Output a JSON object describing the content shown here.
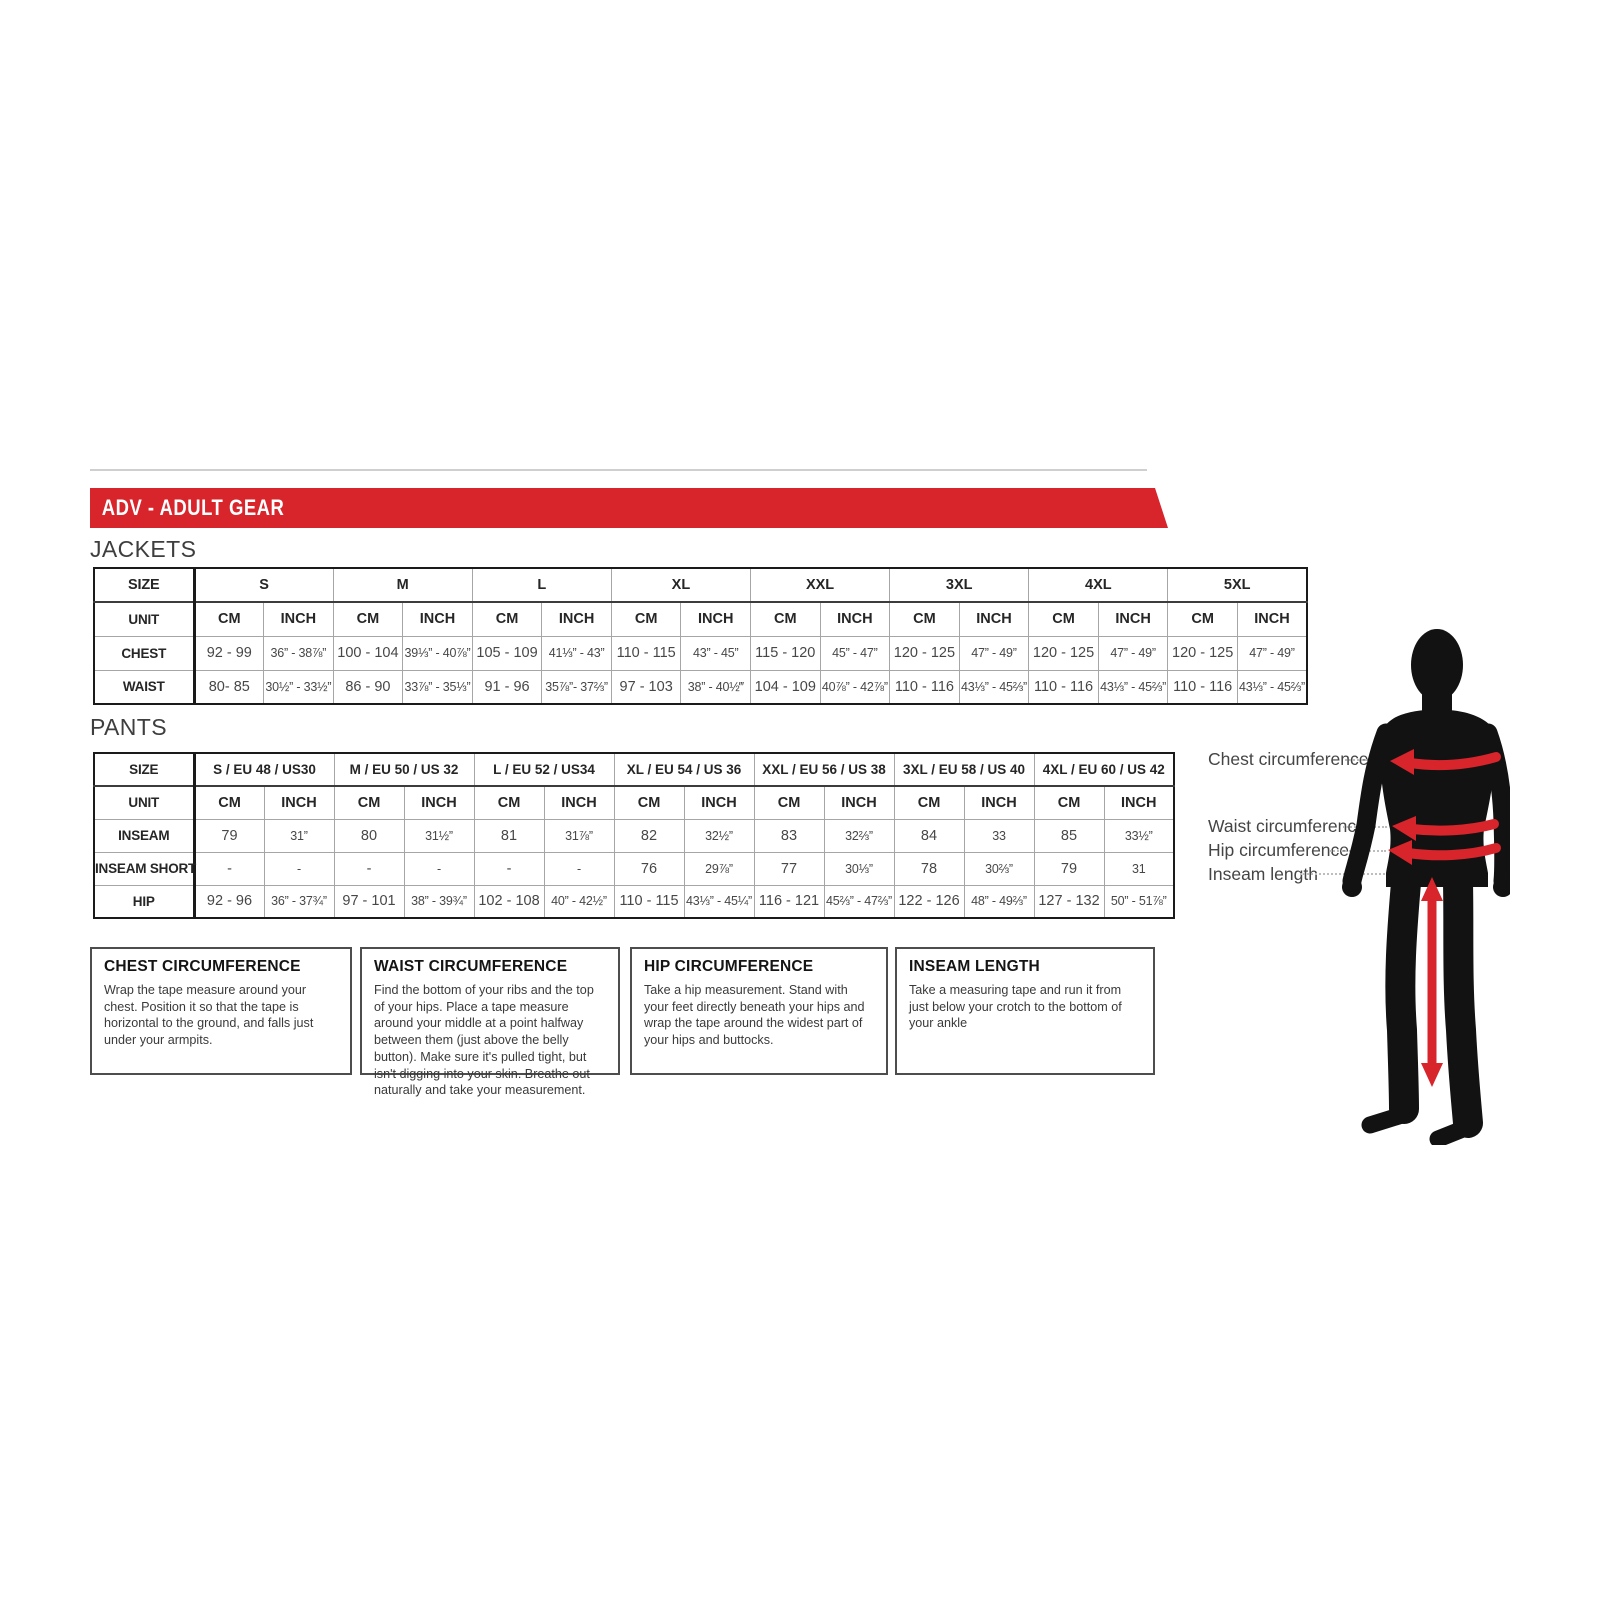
{
  "colors": {
    "accent": "#d8242b",
    "silhouette": "#121212"
  },
  "banner": {
    "title": "ADV - ADULT GEAR"
  },
  "jackets": {
    "section_label": "JACKETS",
    "size_header": "SIZE",
    "unit_header": "UNIT",
    "cm_label": "CM",
    "inch_label": "INCH",
    "sizes": [
      "S",
      "M",
      "L",
      "XL",
      "XXL",
      "3XL",
      "4XL",
      "5XL"
    ],
    "rows": [
      {
        "label": "CHEST",
        "cells": [
          [
            "92 - 99",
            "36” - 38⅞”"
          ],
          [
            "100 - 104",
            "39⅓” - 40⅞”"
          ],
          [
            "105 - 109",
            "41⅓” - 43”"
          ],
          [
            "110 - 115",
            "43” - 45”"
          ],
          [
            "115 - 120",
            "45” - 47”"
          ],
          [
            "120 - 125",
            "47” - 49”"
          ],
          [
            "120 - 125",
            "47” - 49”"
          ],
          [
            "120 - 125",
            "47” - 49”"
          ]
        ]
      },
      {
        "label": "WAIST",
        "cells": [
          [
            "80- 85",
            "30½” - 33½”"
          ],
          [
            "86 - 90",
            "33⅞” - 35⅓”"
          ],
          [
            "91 - 96",
            "35⅞”- 37⅔”"
          ],
          [
            "97 - 103",
            "38” - 40½‴"
          ],
          [
            "104 - 109",
            "40⅞” - 42⅞”"
          ],
          [
            "110 - 116",
            "43⅓” - 45⅔”"
          ],
          [
            "110 - 116",
            "43⅓” - 45⅔”"
          ],
          [
            "110 - 116",
            "43⅓” - 45⅔”"
          ]
        ]
      }
    ]
  },
  "pants": {
    "section_label": "PANTS",
    "size_header": "SIZE",
    "unit_header": "UNIT",
    "cm_label": "CM",
    "inch_label": "INCH",
    "sizes": [
      "S / EU 48 / US30",
      "M / EU 50 / US 32",
      "L / EU 52 / US34",
      "XL / EU 54 / US 36",
      "XXL / EU 56 / US 38",
      "3XL / EU 58 / US 40",
      "4XL / EU 60 / US 42"
    ],
    "rows": [
      {
        "label": "INSEAM",
        "cells": [
          [
            "79",
            "31”"
          ],
          [
            "80",
            "31½”"
          ],
          [
            "81",
            "31⅞”"
          ],
          [
            "82",
            "32½”"
          ],
          [
            "83",
            "32⅔”"
          ],
          [
            "84",
            "33"
          ],
          [
            "85",
            "33½”"
          ]
        ]
      },
      {
        "label": "INSEAM SHORT",
        "cells": [
          [
            "-",
            "-"
          ],
          [
            "-",
            "-"
          ],
          [
            "-",
            "-"
          ],
          [
            "76",
            "29⅞”"
          ],
          [
            "77",
            "30⅓”"
          ],
          [
            "78",
            "30⅔”"
          ],
          [
            "79",
            "31"
          ]
        ]
      },
      {
        "label": "HIP",
        "cells": [
          [
            "92 - 96",
            "36” - 37¾”"
          ],
          [
            "97 - 101",
            "38” - 39¾”"
          ],
          [
            "102 - 108",
            "40” - 42½”"
          ],
          [
            "110 - 115",
            "43⅓” - 45¼”"
          ],
          [
            "116 - 121",
            "45⅔” - 47⅔”"
          ],
          [
            "122 - 126",
            "48” - 49⅔”"
          ],
          [
            "127 - 132",
            "50” - 51⅞”"
          ]
        ]
      }
    ]
  },
  "info_boxes": [
    {
      "title": "CHEST CIRCUMFERENCE",
      "body": "Wrap the tape measure around your chest. Position it so that the tape is horizontal to the ground, and falls just under your armpits."
    },
    {
      "title": "WAIST CIRCUMFERENCE",
      "body": "Find the bottom of your ribs and the top of your hips. Place a tape measure around your middle at a point halfway between them (just above the belly button). Make sure it's pulled tight, but isn't digging into your skin. Breathe out naturally and take your measurement."
    },
    {
      "title": "HIP CIRCUMFERENCE",
      "body": "Take a hip measurement. Stand with your feet directly beneath your hips and wrap the tape around the widest part of your hips and buttocks."
    },
    {
      "title": "INSEAM LENGTH",
      "body": "Take a measuring tape and run it from just below your crotch to the bottom of your ankle"
    }
  ],
  "figure": {
    "labels": [
      "Chest circumference",
      "Waist circumference",
      "Hip circumference",
      "Inseam length"
    ]
  }
}
